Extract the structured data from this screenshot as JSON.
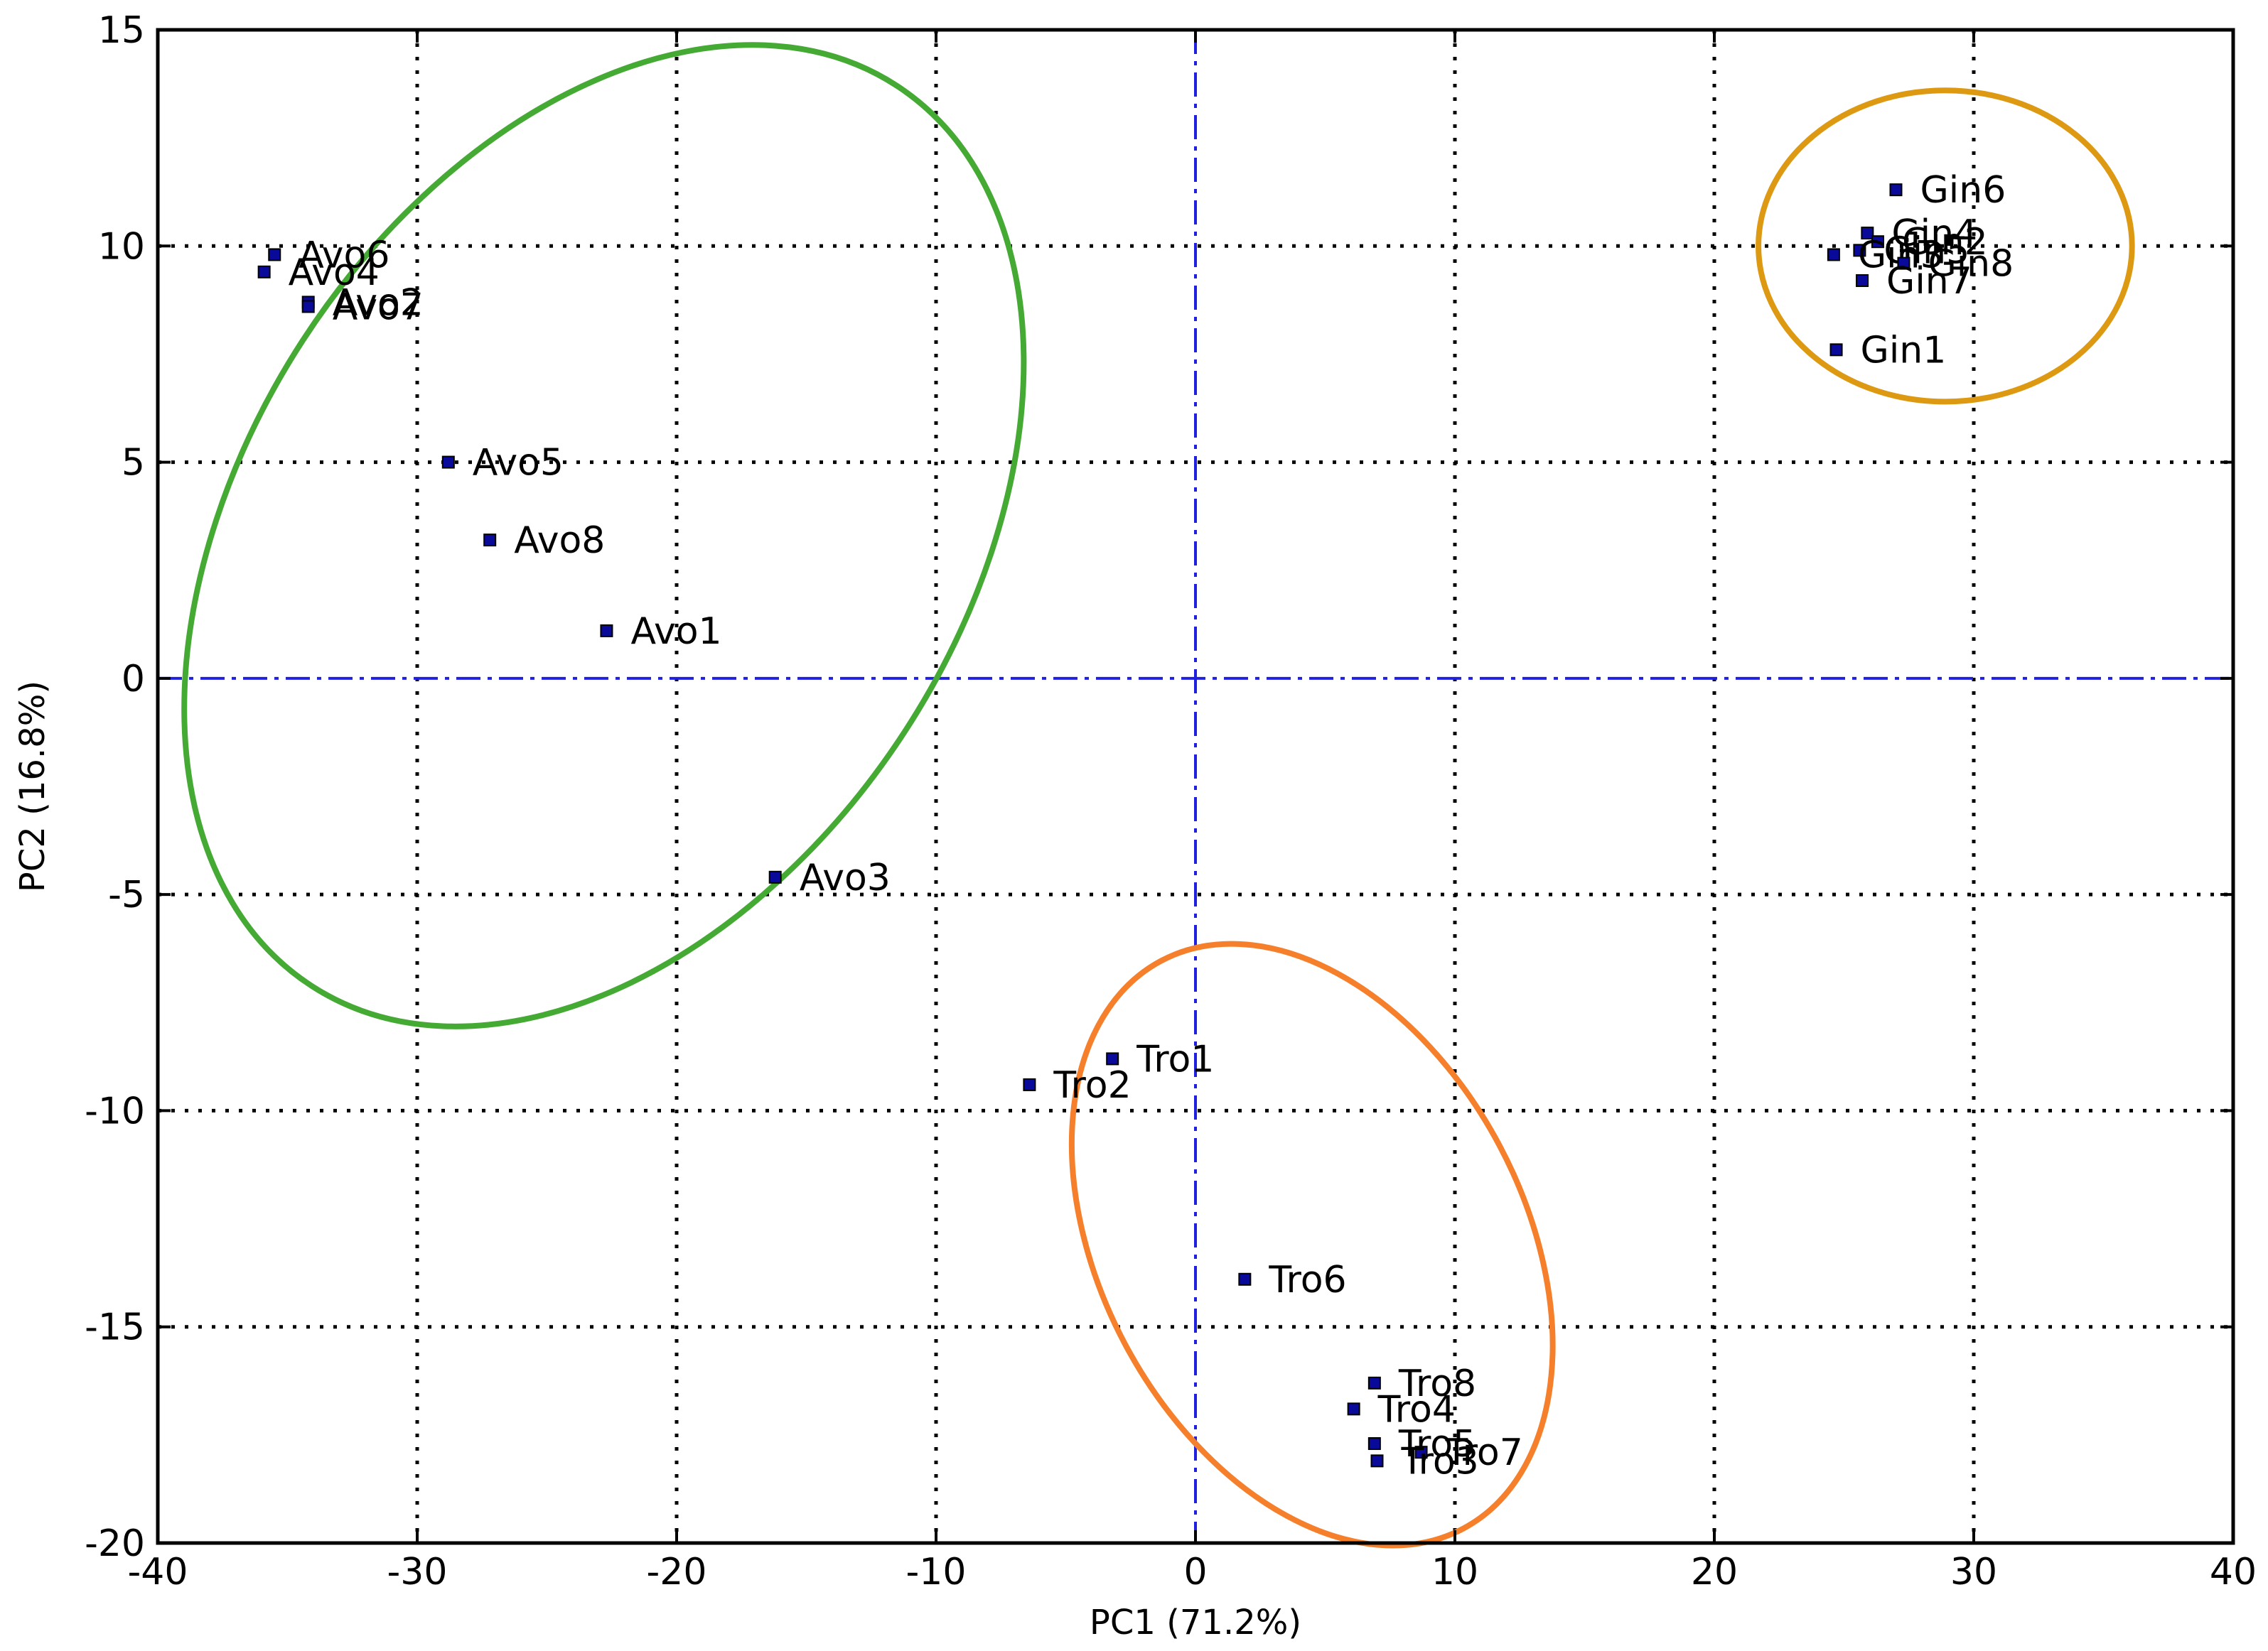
{
  "chart_data": {
    "type": "scatter",
    "title": "",
    "xlabel": "PC1 (71.2%)",
    "ylabel": "PC2 (16.8%)",
    "xlim": [
      -40,
      40
    ],
    "ylim": [
      -20,
      15
    ],
    "xticks": [
      -40,
      -30,
      -20,
      -10,
      0,
      10,
      20,
      30,
      40
    ],
    "yticks": [
      -20,
      -15,
      -10,
      -5,
      0,
      5,
      10,
      15
    ],
    "grid": true,
    "zero_lines": true,
    "marker_color": "#0a0a9a",
    "zero_line_color": "#2020e0",
    "points": [
      {
        "label": "Avo6",
        "x": -35.5,
        "y": 9.8
      },
      {
        "label": "Avo4",
        "x": -35.9,
        "y": 9.4
      },
      {
        "label": "Avo2",
        "x": -34.2,
        "y": 8.7
      },
      {
        "label": "Avo7",
        "x": -34.2,
        "y": 8.6
      },
      {
        "label": "Avo5",
        "x": -28.8,
        "y": 5.0
      },
      {
        "label": "Avo8",
        "x": -27.2,
        "y": 3.2
      },
      {
        "label": "Avo1",
        "x": -22.7,
        "y": 1.1
      },
      {
        "label": "Avo3",
        "x": -16.2,
        "y": -4.6
      },
      {
        "label": "Gin6",
        "x": 27.0,
        "y": 11.3
      },
      {
        "label": "Gin4",
        "x": 25.9,
        "y": 10.3
      },
      {
        "label": "Gin2",
        "x": 26.3,
        "y": 10.1
      },
      {
        "label": "Gin5",
        "x": 25.6,
        "y": 9.9
      },
      {
        "label": "Gin3",
        "x": 24.6,
        "y": 9.8
      },
      {
        "label": "Gin8",
        "x": 27.3,
        "y": 9.6
      },
      {
        "label": "Gin7",
        "x": 25.7,
        "y": 9.2
      },
      {
        "label": "Gin1",
        "x": 24.7,
        "y": 7.6
      },
      {
        "label": "Tro1",
        "x": -3.2,
        "y": -8.8
      },
      {
        "label": "Tro2",
        "x": -6.4,
        "y": -9.4
      },
      {
        "label": "Tro6",
        "x": 1.9,
        "y": -13.9
      },
      {
        "label": "Tro8",
        "x": 6.9,
        "y": -16.3
      },
      {
        "label": "Tro4",
        "x": 6.1,
        "y": -16.9
      },
      {
        "label": "Tro5",
        "x": 6.9,
        "y": -17.7
      },
      {
        "label": "Tro7",
        "x": 8.7,
        "y": -17.9
      },
      {
        "label": "Tro3",
        "x": 7.0,
        "y": -18.1
      }
    ],
    "clusters": [
      {
        "group": "Avo",
        "color": "#44aa33",
        "cx": -22.8,
        "cy": 3.3,
        "rx": 20.7,
        "ry": 8.3,
        "tilt": -57
      },
      {
        "group": "Gin",
        "color": "#dd9911",
        "cx": 28.9,
        "cy": 10.0,
        "rx": 7.2,
        "ry": 3.6,
        "tilt": 0
      },
      {
        "group": "Tro",
        "color": "#f57f2a",
        "cx": 4.5,
        "cy": -13.1,
        "rx": 12.4,
        "ry": 4.9,
        "tilt": 62
      }
    ]
  }
}
